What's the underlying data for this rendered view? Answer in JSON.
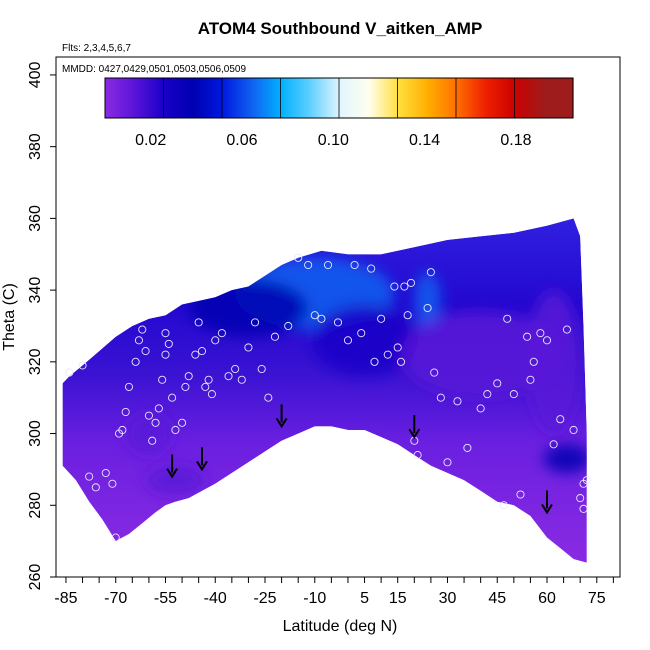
{
  "chart_data": {
    "type": "heatmap",
    "title": "ATOM4 Southbound V_aitken_AMP",
    "subtitle_flights": "Flts: 2,3,4,5,6,7",
    "subtitle_dates": "MMDD: 0427,0429,0501,0503,0506,0509",
    "xlabel": "Latitude (deg N)",
    "ylabel": "Theta (C)",
    "xlim": [
      -88,
      82
    ],
    "ylim": [
      260,
      405
    ],
    "x_ticks": [
      -85,
      -70,
      -55,
      -40,
      -25,
      -10,
      5,
      15,
      30,
      45,
      60,
      75
    ],
    "y_ticks": [
      260,
      280,
      300,
      320,
      340,
      360,
      380,
      400
    ],
    "colorbar": {
      "range": [
        0,
        0.205
      ],
      "ticks": [
        0.02,
        0.06,
        0.1,
        0.14,
        0.18
      ],
      "tick_labels": [
        "0.02",
        "0.06",
        "0.10",
        "0.14",
        "0.18"
      ],
      "colors": [
        "#8a2be2",
        "#5a14d8",
        "#1a00c8",
        "#0000b0",
        "#0018e0",
        "#1060f0",
        "#00b0ff",
        "#60d0ff",
        "#e0f4ff",
        "#fffff0",
        "#ffe040",
        "#ffb000",
        "#ff7000",
        "#ee2000",
        "#cc0000",
        "#9e1c1c"
      ]
    },
    "domain_bottom": [
      [
        -86,
        291
      ],
      [
        -82,
        287
      ],
      [
        -78,
        281
      ],
      [
        -74,
        276
      ],
      [
        -70,
        270
      ],
      [
        -66,
        272
      ],
      [
        -62,
        275
      ],
      [
        -58,
        278
      ],
      [
        -55,
        280
      ],
      [
        -52,
        281
      ],
      [
        -48,
        282
      ],
      [
        -44,
        284
      ],
      [
        -40,
        286
      ],
      [
        -35,
        289
      ],
      [
        -30,
        292
      ],
      [
        -25,
        295
      ],
      [
        -20,
        298
      ],
      [
        -15,
        300
      ],
      [
        -10,
        302
      ],
      [
        -5,
        302
      ],
      [
        0,
        301
      ],
      [
        5,
        301
      ],
      [
        10,
        299
      ],
      [
        15,
        297
      ],
      [
        20,
        294
      ],
      [
        25,
        291
      ],
      [
        30,
        289
      ],
      [
        35,
        287
      ],
      [
        40,
        284
      ],
      [
        45,
        281
      ],
      [
        50,
        280
      ],
      [
        55,
        277
      ],
      [
        60,
        271
      ],
      [
        64,
        268
      ],
      [
        68,
        265
      ],
      [
        72,
        264
      ]
    ],
    "domain_top": [
      [
        72,
        264
      ],
      [
        72,
        300
      ],
      [
        71,
        330
      ],
      [
        70,
        355
      ],
      [
        68,
        360
      ],
      [
        60,
        358
      ],
      [
        50,
        356
      ],
      [
        40,
        355
      ],
      [
        30,
        354
      ],
      [
        20,
        352
      ],
      [
        10,
        350
      ],
      [
        0,
        350
      ],
      [
        -8,
        351
      ],
      [
        -15,
        349
      ],
      [
        -20,
        347
      ],
      [
        -25,
        344
      ],
      [
        -30,
        341
      ],
      [
        -35,
        340
      ],
      [
        -40,
        338
      ],
      [
        -45,
        337
      ],
      [
        -50,
        336
      ],
      [
        -55,
        333
      ],
      [
        -60,
        332
      ],
      [
        -65,
        330
      ],
      [
        -70,
        327
      ],
      [
        -75,
        323
      ],
      [
        -80,
        319
      ],
      [
        -84,
        316
      ],
      [
        -86,
        314
      ],
      [
        -86,
        291
      ]
    ],
    "field_blobs": [
      {
        "x": -10,
        "y": 339,
        "v": 0.075,
        "rx": 24,
        "ry": 10
      },
      {
        "x": -30,
        "y": 335,
        "v": 0.045,
        "rx": 18,
        "ry": 8
      },
      {
        "x": 24,
        "y": 337,
        "v": 0.07,
        "rx": 4,
        "ry": 8
      },
      {
        "x": 5,
        "y": 326,
        "v": 0.03,
        "rx": 16,
        "ry": 10
      },
      {
        "x": 40,
        "y": 322,
        "v": 0.02,
        "rx": 24,
        "ry": 12
      },
      {
        "x": 66,
        "y": 293,
        "v": 0.045,
        "rx": 7,
        "ry": 4
      },
      {
        "x": -60,
        "y": 300,
        "v": 0.02,
        "rx": 7,
        "ry": 6
      },
      {
        "x": -52,
        "y": 287,
        "v": 0.02,
        "rx": 9,
        "ry": 4
      },
      {
        "x": 62,
        "y": 320,
        "v": 0.025,
        "rx": 8,
        "ry": 20
      }
    ],
    "arrows": [
      [
        -53,
        288
      ],
      [
        -44,
        290
      ],
      [
        -20,
        302
      ],
      [
        20,
        299
      ],
      [
        60,
        278
      ]
    ],
    "points": [
      [
        -84,
        317
      ],
      [
        -80,
        319
      ],
      [
        -78,
        288
      ],
      [
        -76,
        285
      ],
      [
        -73,
        289
      ],
      [
        -71,
        286
      ],
      [
        -70,
        271
      ],
      [
        -68,
        301
      ],
      [
        -69,
        300
      ],
      [
        -67,
        306
      ],
      [
        -66,
        313
      ],
      [
        -64,
        320
      ],
      [
        -63,
        326
      ],
      [
        -62,
        329
      ],
      [
        -61,
        323
      ],
      [
        -60,
        305
      ],
      [
        -59,
        298
      ],
      [
        -58,
        303
      ],
      [
        -57,
        307
      ],
      [
        -56,
        315
      ],
      [
        -55,
        322
      ],
      [
        -54,
        325
      ],
      [
        -55,
        328
      ],
      [
        -53,
        310
      ],
      [
        -52,
        301
      ],
      [
        -50,
        303
      ],
      [
        -49,
        313
      ],
      [
        -48,
        316
      ],
      [
        -46,
        322
      ],
      [
        -45,
        331
      ],
      [
        -44,
        323
      ],
      [
        -43,
        313
      ],
      [
        -42,
        315
      ],
      [
        -41,
        311
      ],
      [
        -40,
        326
      ],
      [
        -38,
        328
      ],
      [
        -36,
        316
      ],
      [
        -34,
        318
      ],
      [
        -32,
        315
      ],
      [
        -30,
        324
      ],
      [
        -28,
        331
      ],
      [
        -26,
        318
      ],
      [
        -24,
        310
      ],
      [
        -22,
        327
      ],
      [
        -18,
        330
      ],
      [
        -15,
        349
      ],
      [
        -12,
        347
      ],
      [
        -10,
        333
      ],
      [
        -8,
        332
      ],
      [
        -6,
        347
      ],
      [
        -3,
        331
      ],
      [
        0,
        326
      ],
      [
        2,
        347
      ],
      [
        4,
        328
      ],
      [
        7,
        346
      ],
      [
        8,
        320
      ],
      [
        10,
        332
      ],
      [
        12,
        322
      ],
      [
        14,
        341
      ],
      [
        15,
        324
      ],
      [
        16,
        320
      ],
      [
        17,
        341
      ],
      [
        18,
        333
      ],
      [
        19,
        342
      ],
      [
        20,
        298
      ],
      [
        21,
        294
      ],
      [
        25,
        345
      ],
      [
        24,
        335
      ],
      [
        26,
        317
      ],
      [
        28,
        310
      ],
      [
        30,
        292
      ],
      [
        33,
        309
      ],
      [
        36,
        296
      ],
      [
        40,
        307
      ],
      [
        42,
        311
      ],
      [
        45,
        314
      ],
      [
        47,
        280
      ],
      [
        48,
        332
      ],
      [
        50,
        311
      ],
      [
        52,
        283
      ],
      [
        54,
        327
      ],
      [
        55,
        315
      ],
      [
        56,
        320
      ],
      [
        58,
        328
      ],
      [
        60,
        326
      ],
      [
        62,
        297
      ],
      [
        64,
        304
      ],
      [
        66,
        329
      ],
      [
        68,
        301
      ],
      [
        70,
        282
      ],
      [
        71,
        286
      ],
      [
        72,
        287
      ],
      [
        71,
        279
      ]
    ]
  }
}
